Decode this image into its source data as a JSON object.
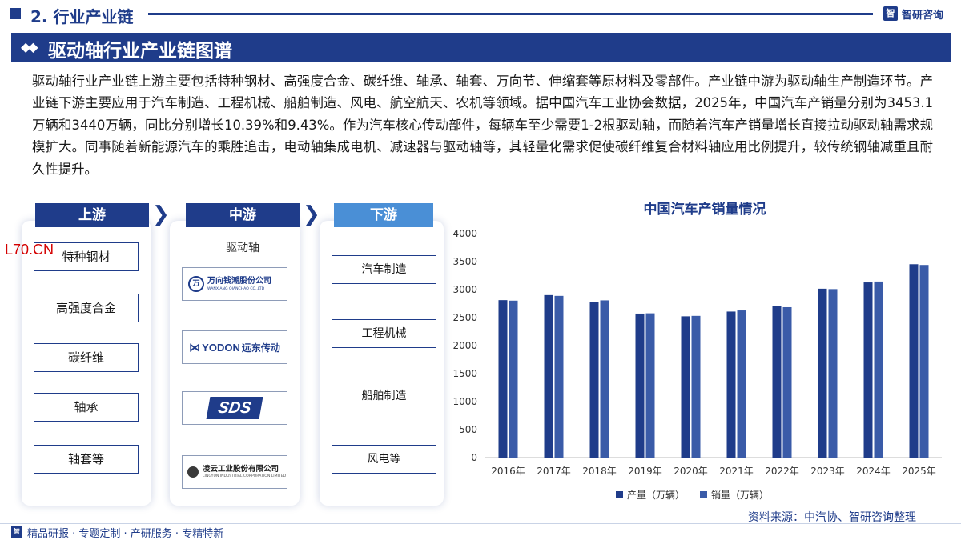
{
  "header": {
    "section": "2. 行业产业链",
    "brand": "智研咨询",
    "title": "驱动轴行业产业链图谱"
  },
  "paragraph": "驱动轴行业产业链上游主要包括特种钢材、高强度合金、碳纤维、轴承、轴套、万向节、伸缩套等原材料及零部件。产业链中游为驱动轴生产制造环节。产业链下游主要应用于汽车制造、工程机械、船舶制造、风电、航空航天、农机等领域。据中国汽车工业协会数据，2025年，中国汽车产销量分别为3453.1万辆和3440万辆，同比分别增长10.39%和9.43%。作为汽车核心传动部件，每辆车至少需要1-2根驱动轴，而随着汽车产销量增长直接拉动驱动轴需求规模扩大。同事随着新能源汽车的乘胜追击，电动轴集成电机、减速器与驱动轴等，其轻量化需求促使碳纤维复合材料轴应用比例提升，较传统钢轴减重且耐久性提升。",
  "watermark_text": "L70.CN",
  "chain": {
    "upstream": {
      "label": "上游",
      "items": [
        "特种钢材",
        "高强度合金",
        "碳纤维",
        "轴承",
        "轴套等"
      ]
    },
    "midstream": {
      "label": "中游",
      "sub_label": "驱动轴",
      "logos": [
        {
          "icon": "wanxiang-logo",
          "cn": "万向钱潮股份公司",
          "en": "WANXIANG QIANCHAO CO.,LTD"
        },
        {
          "icon": "yodon-logo",
          "en": "YODON",
          "cn": "远东传动"
        },
        {
          "icon": "sds-logo",
          "text": "SDS"
        },
        {
          "icon": "lingyun-logo",
          "cn": "凌云工业股份有限公司",
          "en": "LINGYUN INDUSTRIAL CORPORATION LIMITED"
        }
      ]
    },
    "downstream": {
      "label": "下游",
      "items": [
        "汽车制造",
        "工程机械",
        "船舶制造",
        "风电等"
      ]
    }
  },
  "colors": {
    "navy": "#1f3c8a",
    "light_blue": "#4a8fd6",
    "production": "#1f3c8a",
    "sales": "#3a5ba8"
  },
  "chart_data": {
    "type": "bar",
    "title": "中国汽车产销量情况",
    "categories": [
      "2016年",
      "2017年",
      "2018年",
      "2019年",
      "2020年",
      "2021年",
      "2022年",
      "2023年",
      "2024年",
      "2025年"
    ],
    "series": [
      {
        "name": "产量（万辆）",
        "values": [
          2812,
          2902,
          2781,
          2572,
          2523,
          2608,
          2702,
          3016,
          3128,
          3453.1
        ]
      },
      {
        "name": "销量（万辆）",
        "values": [
          2803,
          2888,
          2808,
          2577,
          2531,
          2628,
          2686,
          3009,
          3144,
          3440
        ]
      }
    ],
    "ylim": [
      0,
      4000
    ],
    "yticks": [
      0,
      500,
      1000,
      1500,
      2000,
      2500,
      3000,
      3500,
      4000
    ],
    "grid": false,
    "legend": "bottom"
  },
  "footer": {
    "source": "资料来源：中汽协、智研咨询整理",
    "tagline": "精品研报 · 专题定制 · 产研服务 · 专精特新",
    "mark": "智"
  }
}
